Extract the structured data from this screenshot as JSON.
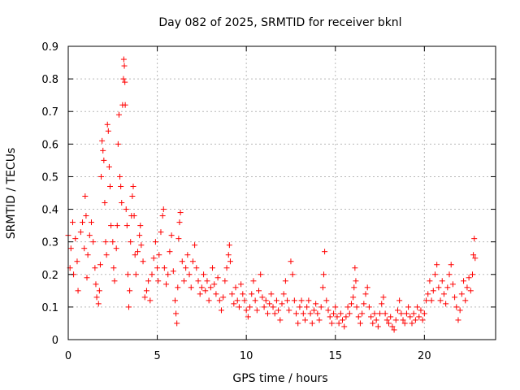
{
  "chart_data": {
    "type": "scatter",
    "title": "Day 082 of 2025, SRMTID for receiver bknl",
    "xlabel": "GPS time / hours",
    "ylabel": "SRMTID / TECUs",
    "xlim": [
      0,
      24
    ],
    "ylim": [
      0,
      0.9
    ],
    "x_ticks": [
      0,
      5,
      10,
      15,
      20
    ],
    "x_tick_labels": [
      "0",
      "5",
      "10",
      "15",
      "20"
    ],
    "y_ticks": [
      0,
      0.1,
      0.2,
      0.3,
      0.4,
      0.5,
      0.6,
      0.7,
      0.8,
      0.9
    ],
    "y_tick_labels": [
      "0",
      "0.1",
      "0.2",
      "0.3",
      "0.4",
      "0.5",
      "0.6",
      "0.7",
      "0.8",
      "0.9"
    ],
    "grid": true,
    "marker": "+",
    "color": "#ff0000",
    "series": [
      {
        "name": "SRMTID",
        "points": [
          [
            0.0,
            0.32
          ],
          [
            0.1,
            0.22
          ],
          [
            0.15,
            0.28
          ],
          [
            0.25,
            0.36
          ],
          [
            0.3,
            0.2
          ],
          [
            0.4,
            0.31
          ],
          [
            0.5,
            0.24
          ],
          [
            0.55,
            0.15
          ],
          [
            0.7,
            0.33
          ],
          [
            0.8,
            0.36
          ],
          [
            0.9,
            0.28
          ],
          [
            0.95,
            0.44
          ],
          [
            1.0,
            0.38
          ],
          [
            1.05,
            0.19
          ],
          [
            1.1,
            0.26
          ],
          [
            1.2,
            0.32
          ],
          [
            1.3,
            0.36
          ],
          [
            1.4,
            0.3
          ],
          [
            1.5,
            0.22
          ],
          [
            1.55,
            0.17
          ],
          [
            1.6,
            0.13
          ],
          [
            1.7,
            0.11
          ],
          [
            1.75,
            0.15
          ],
          [
            1.8,
            0.23
          ],
          [
            1.85,
            0.5
          ],
          [
            1.9,
            0.61
          ],
          [
            1.95,
            0.58
          ],
          [
            2.0,
            0.55
          ],
          [
            2.05,
            0.42
          ],
          [
            2.1,
            0.3
          ],
          [
            2.15,
            0.26
          ],
          [
            2.2,
            0.66
          ],
          [
            2.25,
            0.64
          ],
          [
            2.3,
            0.53
          ],
          [
            2.35,
            0.47
          ],
          [
            2.4,
            0.35
          ],
          [
            2.5,
            0.3
          ],
          [
            2.55,
            0.22
          ],
          [
            2.6,
            0.18
          ],
          [
            2.7,
            0.28
          ],
          [
            2.75,
            0.35
          ],
          [
            2.8,
            0.6
          ],
          [
            2.85,
            0.69
          ],
          [
            2.9,
            0.5
          ],
          [
            2.95,
            0.47
          ],
          [
            3.0,
            0.42
          ],
          [
            3.05,
            0.72
          ],
          [
            3.1,
            0.8
          ],
          [
            3.12,
            0.86
          ],
          [
            3.15,
            0.84
          ],
          [
            3.18,
            0.79
          ],
          [
            3.2,
            0.72
          ],
          [
            3.25,
            0.4
          ],
          [
            3.3,
            0.35
          ],
          [
            3.35,
            0.2
          ],
          [
            3.4,
            0.1
          ],
          [
            3.45,
            0.15
          ],
          [
            3.5,
            0.3
          ],
          [
            3.55,
            0.38
          ],
          [
            3.6,
            0.44
          ],
          [
            3.65,
            0.47
          ],
          [
            3.7,
            0.38
          ],
          [
            3.75,
            0.26
          ],
          [
            3.8,
            0.2
          ],
          [
            3.9,
            0.27
          ],
          [
            4.0,
            0.32
          ],
          [
            4.05,
            0.35
          ],
          [
            4.1,
            0.29
          ],
          [
            4.2,
            0.24
          ],
          [
            4.3,
            0.13
          ],
          [
            4.4,
            0.15
          ],
          [
            4.5,
            0.18
          ],
          [
            4.6,
            0.12
          ],
          [
            4.7,
            0.2
          ],
          [
            4.8,
            0.25
          ],
          [
            4.9,
            0.3
          ],
          [
            5.0,
            0.22
          ],
          [
            5.05,
            0.18
          ],
          [
            5.1,
            0.26
          ],
          [
            5.2,
            0.33
          ],
          [
            5.3,
            0.38
          ],
          [
            5.35,
            0.4
          ],
          [
            5.4,
            0.22
          ],
          [
            5.5,
            0.17
          ],
          [
            5.6,
            0.2
          ],
          [
            5.7,
            0.27
          ],
          [
            5.8,
            0.32
          ],
          [
            5.9,
            0.21
          ],
          [
            6.0,
            0.12
          ],
          [
            6.05,
            0.08
          ],
          [
            6.1,
            0.05
          ],
          [
            6.15,
            0.16
          ],
          [
            6.2,
            0.31
          ],
          [
            6.25,
            0.36
          ],
          [
            6.3,
            0.39
          ],
          [
            6.4,
            0.24
          ],
          [
            6.5,
            0.18
          ],
          [
            6.6,
            0.22
          ],
          [
            6.7,
            0.26
          ],
          [
            6.8,
            0.2
          ],
          [
            6.9,
            0.16
          ],
          [
            7.0,
            0.24
          ],
          [
            7.1,
            0.29
          ],
          [
            7.2,
            0.22
          ],
          [
            7.3,
            0.18
          ],
          [
            7.4,
            0.14
          ],
          [
            7.5,
            0.16
          ],
          [
            7.6,
            0.2
          ],
          [
            7.7,
            0.15
          ],
          [
            7.8,
            0.18
          ],
          [
            7.9,
            0.12
          ],
          [
            8.0,
            0.16
          ],
          [
            8.1,
            0.22
          ],
          [
            8.2,
            0.17
          ],
          [
            8.3,
            0.14
          ],
          [
            8.4,
            0.19
          ],
          [
            8.5,
            0.12
          ],
          [
            8.6,
            0.09
          ],
          [
            8.7,
            0.13
          ],
          [
            8.8,
            0.18
          ],
          [
            8.9,
            0.22
          ],
          [
            9.0,
            0.26
          ],
          [
            9.05,
            0.29
          ],
          [
            9.1,
            0.24
          ],
          [
            9.2,
            0.14
          ],
          [
            9.3,
            0.11
          ],
          [
            9.4,
            0.16
          ],
          [
            9.5,
            0.12
          ],
          [
            9.6,
            0.1
          ],
          [
            9.7,
            0.17
          ],
          [
            9.8,
            0.14
          ],
          [
            9.9,
            0.12
          ],
          [
            10.0,
            0.09
          ],
          [
            10.1,
            0.07
          ],
          [
            10.2,
            0.1
          ],
          [
            10.3,
            0.14
          ],
          [
            10.4,
            0.18
          ],
          [
            10.5,
            0.12
          ],
          [
            10.6,
            0.09
          ],
          [
            10.7,
            0.15
          ],
          [
            10.8,
            0.2
          ],
          [
            10.9,
            0.13
          ],
          [
            11.0,
            0.1
          ],
          [
            11.1,
            0.12
          ],
          [
            11.2,
            0.08
          ],
          [
            11.3,
            0.11
          ],
          [
            11.4,
            0.14
          ],
          [
            11.5,
            0.1
          ],
          [
            11.6,
            0.08
          ],
          [
            11.7,
            0.12
          ],
          [
            11.8,
            0.09
          ],
          [
            11.9,
            0.06
          ],
          [
            12.0,
            0.11
          ],
          [
            12.1,
            0.14
          ],
          [
            12.2,
            0.18
          ],
          [
            12.3,
            0.12
          ],
          [
            12.4,
            0.09
          ],
          [
            12.5,
            0.24
          ],
          [
            12.6,
            0.2
          ],
          [
            12.7,
            0.12
          ],
          [
            12.8,
            0.08
          ],
          [
            12.9,
            0.05
          ],
          [
            13.0,
            0.1
          ],
          [
            13.1,
            0.12
          ],
          [
            13.2,
            0.08
          ],
          [
            13.3,
            0.06
          ],
          [
            13.4,
            0.1
          ],
          [
            13.5,
            0.12
          ],
          [
            13.6,
            0.08
          ],
          [
            13.7,
            0.05
          ],
          [
            13.8,
            0.09
          ],
          [
            13.9,
            0.11
          ],
          [
            14.0,
            0.08
          ],
          [
            14.1,
            0.06
          ],
          [
            14.2,
            0.1
          ],
          [
            14.3,
            0.16
          ],
          [
            14.35,
            0.2
          ],
          [
            14.4,
            0.27
          ],
          [
            14.5,
            0.12
          ],
          [
            14.6,
            0.09
          ],
          [
            14.7,
            0.07
          ],
          [
            14.8,
            0.05
          ],
          [
            14.9,
            0.08
          ],
          [
            15.0,
            0.1
          ],
          [
            15.1,
            0.07
          ],
          [
            15.2,
            0.05
          ],
          [
            15.3,
            0.08
          ],
          [
            15.4,
            0.06
          ],
          [
            15.5,
            0.04
          ],
          [
            15.6,
            0.07
          ],
          [
            15.7,
            0.1
          ],
          [
            15.8,
            0.08
          ],
          [
            15.9,
            0.11
          ],
          [
            16.0,
            0.13
          ],
          [
            16.05,
            0.16
          ],
          [
            16.1,
            0.22
          ],
          [
            16.15,
            0.18
          ],
          [
            16.2,
            0.1
          ],
          [
            16.3,
            0.07
          ],
          [
            16.4,
            0.05
          ],
          [
            16.5,
            0.08
          ],
          [
            16.6,
            0.11
          ],
          [
            16.7,
            0.14
          ],
          [
            16.8,
            0.16
          ],
          [
            16.9,
            0.1
          ],
          [
            17.0,
            0.07
          ],
          [
            17.1,
            0.05
          ],
          [
            17.2,
            0.08
          ],
          [
            17.3,
            0.06
          ],
          [
            17.4,
            0.04
          ],
          [
            17.5,
            0.08
          ],
          [
            17.6,
            0.11
          ],
          [
            17.7,
            0.13
          ],
          [
            17.8,
            0.08
          ],
          [
            17.9,
            0.06
          ],
          [
            18.0,
            0.05
          ],
          [
            18.1,
            0.07
          ],
          [
            18.2,
            0.04
          ],
          [
            18.3,
            0.03
          ],
          [
            18.4,
            0.06
          ],
          [
            18.5,
            0.09
          ],
          [
            18.6,
            0.12
          ],
          [
            18.7,
            0.08
          ],
          [
            18.8,
            0.06
          ],
          [
            18.9,
            0.05
          ],
          [
            19.0,
            0.08
          ],
          [
            19.1,
            0.1
          ],
          [
            19.2,
            0.07
          ],
          [
            19.3,
            0.05
          ],
          [
            19.4,
            0.08
          ],
          [
            19.5,
            0.06
          ],
          [
            19.6,
            0.1
          ],
          [
            19.7,
            0.07
          ],
          [
            19.8,
            0.09
          ],
          [
            19.9,
            0.06
          ],
          [
            20.0,
            0.08
          ],
          [
            20.1,
            0.12
          ],
          [
            20.2,
            0.14
          ],
          [
            20.3,
            0.18
          ],
          [
            20.4,
            0.12
          ],
          [
            20.5,
            0.15
          ],
          [
            20.6,
            0.2
          ],
          [
            20.7,
            0.23
          ],
          [
            20.8,
            0.16
          ],
          [
            20.9,
            0.12
          ],
          [
            21.0,
            0.18
          ],
          [
            21.1,
            0.14
          ],
          [
            21.2,
            0.11
          ],
          [
            21.3,
            0.16
          ],
          [
            21.4,
            0.2
          ],
          [
            21.5,
            0.23
          ],
          [
            21.6,
            0.17
          ],
          [
            21.7,
            0.13
          ],
          [
            21.8,
            0.1
          ],
          [
            21.9,
            0.06
          ],
          [
            22.0,
            0.09
          ],
          [
            22.1,
            0.14
          ],
          [
            22.2,
            0.18
          ],
          [
            22.3,
            0.12
          ],
          [
            22.4,
            0.16
          ],
          [
            22.5,
            0.19
          ],
          [
            22.6,
            0.15
          ],
          [
            22.7,
            0.2
          ],
          [
            22.75,
            0.26
          ],
          [
            22.8,
            0.31
          ],
          [
            22.85,
            0.25
          ]
        ]
      }
    ]
  }
}
